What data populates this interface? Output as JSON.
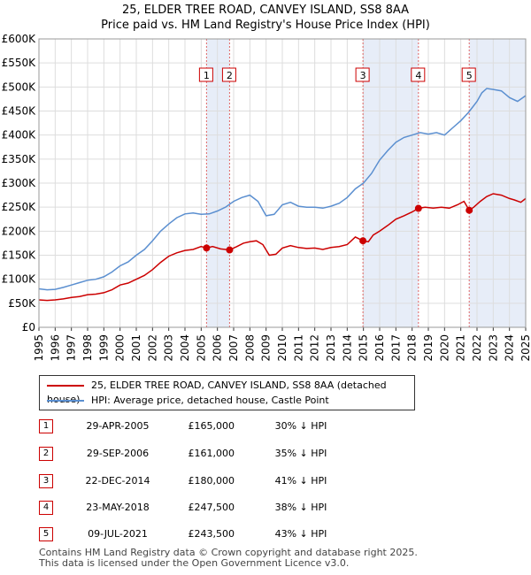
{
  "title_line1": "25, ELDER TREE ROAD, CANVEY ISLAND, SS8 8AA",
  "title_line2": "Price paid vs. HM Land Registry's House Price Index (HPI)",
  "chart_data": {
    "type": "line",
    "xlim": [
      1995,
      2025
    ],
    "ylim": [
      0,
      600000
    ],
    "x_ticks": [
      "1995",
      "1996",
      "1997",
      "1998",
      "1999",
      "2000",
      "2001",
      "2002",
      "2003",
      "2004",
      "2005",
      "2006",
      "2007",
      "2008",
      "2009",
      "2010",
      "2011",
      "2012",
      "2013",
      "2014",
      "2015",
      "2016",
      "2017",
      "2018",
      "2019",
      "2020",
      "2021",
      "2022",
      "2023",
      "2024",
      "2025"
    ],
    "y_ticks": [
      {
        "value": 0,
        "label": "£0"
      },
      {
        "value": 50000,
        "label": "£50K"
      },
      {
        "value": 100000,
        "label": "£100K"
      },
      {
        "value": 150000,
        "label": "£150K"
      },
      {
        "value": 200000,
        "label": "£200K"
      },
      {
        "value": 250000,
        "label": "£250K"
      },
      {
        "value": 300000,
        "label": "£300K"
      },
      {
        "value": 350000,
        "label": "£350K"
      },
      {
        "value": 400000,
        "label": "£400K"
      },
      {
        "value": 450000,
        "label": "£450K"
      },
      {
        "value": 500000,
        "label": "£500K"
      },
      {
        "value": 550000,
        "label": "£550K"
      },
      {
        "value": 600000,
        "label": "£600K"
      }
    ],
    "grid": true,
    "series": [
      {
        "name": "25, ELDER TREE ROAD, CANVEY ISLAND, SS8 8AA (detached house)",
        "color": "#cc0000",
        "x": [
          1995.0,
          1995.5,
          1996.0,
          1996.5,
          1997.0,
          1997.5,
          1998.0,
          1998.5,
          1999.0,
          1999.5,
          2000.0,
          2000.5,
          2001.0,
          2001.5,
          2002.0,
          2002.5,
          2003.0,
          2003.5,
          2004.0,
          2004.5,
          2005.0,
          2005.33,
          2005.7,
          2006.2,
          2006.75,
          2007.2,
          2007.6,
          2008.0,
          2008.4,
          2008.8,
          2009.2,
          2009.6,
          2010.0,
          2010.5,
          2011.0,
          2011.5,
          2012.0,
          2012.5,
          2013.0,
          2013.5,
          2014.0,
          2014.5,
          2014.97,
          2015.3,
          2015.6,
          2016.0,
          2016.5,
          2017.0,
          2017.5,
          2018.0,
          2018.39,
          2018.8,
          2019.3,
          2019.8,
          2020.3,
          2020.8,
          2021.2,
          2021.52,
          2021.8,
          2022.2,
          2022.6,
          2023.0,
          2023.5,
          2024.0,
          2024.3,
          2024.7,
          2025.0
        ],
        "values": [
          57000,
          56000,
          57000,
          59000,
          62000,
          64000,
          68000,
          69000,
          72000,
          78000,
          88000,
          92000,
          100000,
          108000,
          120000,
          135000,
          148000,
          155000,
          160000,
          162000,
          168000,
          165000,
          168000,
          163000,
          161000,
          168000,
          175000,
          178000,
          180000,
          172000,
          150000,
          152000,
          165000,
          170000,
          166000,
          164000,
          165000,
          162000,
          166000,
          168000,
          172000,
          188000,
          180000,
          178000,
          192000,
          200000,
          212000,
          225000,
          232000,
          240000,
          247500,
          250000,
          248000,
          250000,
          248000,
          255000,
          262000,
          243500,
          250000,
          262000,
          272000,
          278000,
          275000,
          268000,
          265000,
          260000,
          268000
        ]
      },
      {
        "name": "HPI: Average price, detached house, Castle Point",
        "color": "#5b8fd0",
        "x": [
          1995.0,
          1995.5,
          1996.0,
          1996.5,
          1997.0,
          1997.5,
          1998.0,
          1998.5,
          1999.0,
          1999.5,
          2000.0,
          2000.5,
          2001.0,
          2001.5,
          2002.0,
          2002.5,
          2003.0,
          2003.5,
          2004.0,
          2004.5,
          2005.0,
          2005.5,
          2006.0,
          2006.5,
          2007.0,
          2007.5,
          2008.0,
          2008.5,
          2009.0,
          2009.5,
          2010.0,
          2010.5,
          2011.0,
          2011.5,
          2012.0,
          2012.5,
          2013.0,
          2013.5,
          2014.0,
          2014.5,
          2015.0,
          2015.5,
          2016.0,
          2016.5,
          2017.0,
          2017.5,
          2018.0,
          2018.5,
          2019.0,
          2019.5,
          2020.0,
          2020.5,
          2021.0,
          2021.5,
          2022.0,
          2022.3,
          2022.6,
          2023.0,
          2023.5,
          2024.0,
          2024.5,
          2025.0
        ],
        "values": [
          80000,
          78000,
          79000,
          83000,
          88000,
          93000,
          98000,
          100000,
          105000,
          115000,
          128000,
          136000,
          150000,
          162000,
          180000,
          200000,
          215000,
          228000,
          236000,
          238000,
          235000,
          236000,
          242000,
          250000,
          262000,
          270000,
          275000,
          262000,
          232000,
          235000,
          255000,
          260000,
          252000,
          250000,
          250000,
          248000,
          252000,
          258000,
          270000,
          288000,
          300000,
          320000,
          348000,
          368000,
          385000,
          395000,
          400000,
          405000,
          402000,
          405000,
          400000,
          415000,
          430000,
          448000,
          470000,
          488000,
          497000,
          495000,
          492000,
          478000,
          470000,
          482000
        ]
      }
    ],
    "sales": [
      {
        "label": "1",
        "x": 2005.33,
        "value": 165000
      },
      {
        "label": "2",
        "x": 2006.75,
        "value": 161000
      },
      {
        "label": "3",
        "x": 2014.97,
        "value": 180000
      },
      {
        "label": "4",
        "x": 2018.39,
        "value": 247500
      },
      {
        "label": "5",
        "x": 2021.52,
        "value": 243500
      }
    ],
    "shaded_periods": [
      [
        2005.33,
        2006.75
      ],
      [
        2014.97,
        2018.39
      ],
      [
        2021.52,
        2025.0
      ]
    ]
  },
  "legend": {
    "property_label": "25, ELDER TREE ROAD, CANVEY ISLAND, SS8 8AA (detached house)",
    "hpi_label": "HPI: Average price, detached house, Castle Point",
    "property_color": "#cc0000",
    "hpi_color": "#5b8fd0"
  },
  "sales_table": [
    {
      "num": "1",
      "date": "29-APR-2005",
      "price": "£165,000",
      "hpi": "30% ↓ HPI"
    },
    {
      "num": "2",
      "date": "29-SEP-2006",
      "price": "£161,000",
      "hpi": "35% ↓ HPI"
    },
    {
      "num": "3",
      "date": "22-DEC-2014",
      "price": "£180,000",
      "hpi": "41% ↓ HPI"
    },
    {
      "num": "4",
      "date": "23-MAY-2018",
      "price": "£247,500",
      "hpi": "38% ↓ HPI"
    },
    {
      "num": "5",
      "date": "09-JUL-2021",
      "price": "£243,500",
      "hpi": "43% ↓ HPI"
    }
  ],
  "footer_line1": "Contains HM Land Registry data © Crown copyright and database right 2025.",
  "footer_line2": "This data is licensed under the Open Government Licence v3.0."
}
